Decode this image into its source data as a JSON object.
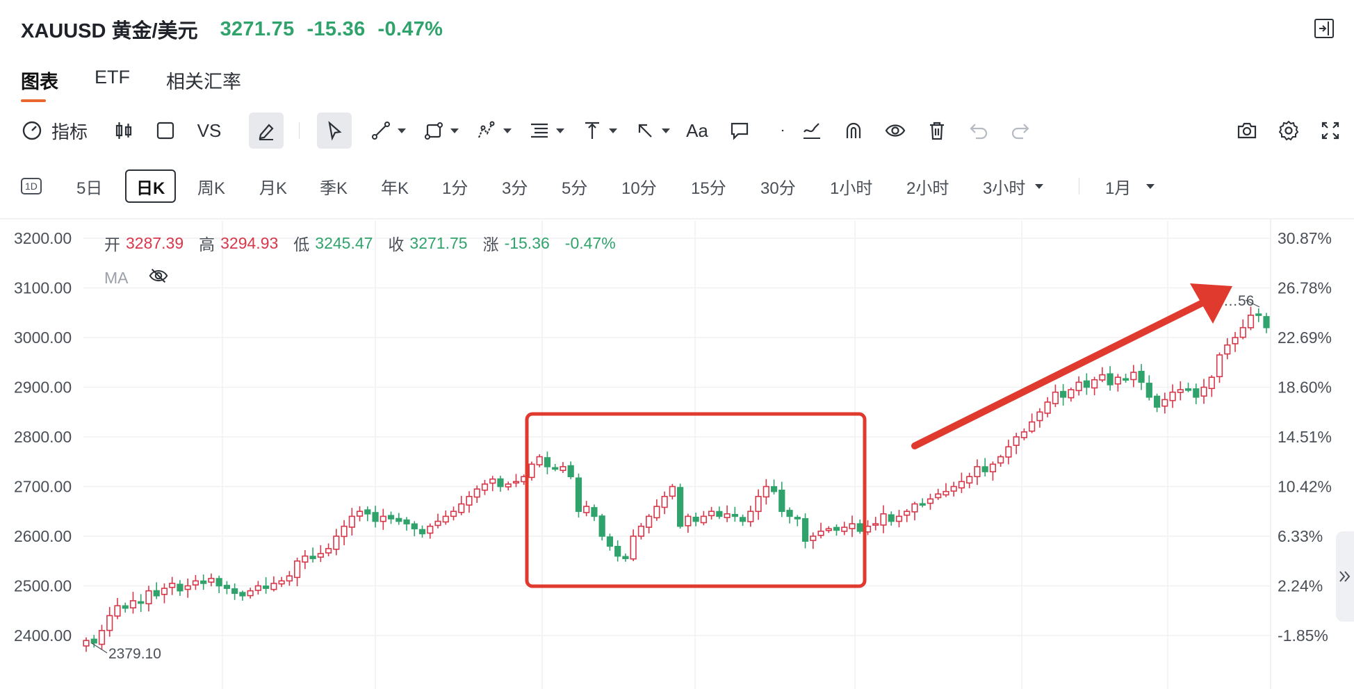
{
  "header": {
    "symbol": "XAUUSD 黄金/美元",
    "price": "3271.75",
    "change": "-15.36",
    "change_pct": "-0.47%",
    "price_color": "#2fa36b"
  },
  "tabs": [
    {
      "label": "图表",
      "active": true
    },
    {
      "label": "ETF",
      "active": false
    },
    {
      "label": "相关汇率",
      "active": false
    }
  ],
  "toolbar": {
    "indicators_label": "指标",
    "vs_label": "VS",
    "text_tool_label": "Aa",
    "icons": [
      "gauge-icon",
      "candlestick-icon",
      "square-icon",
      "pencil-icon",
      "cursor-icon",
      "line-icon",
      "shape-icon",
      "pattern-icon",
      "fib-icon",
      "measure-icon",
      "arrow-icon",
      "text-icon",
      "comment-icon",
      "dot-icon",
      "brush-icon",
      "magnet-icon",
      "eye-icon",
      "trash-icon",
      "undo-icon",
      "redo-icon",
      "camera-icon",
      "gear-icon",
      "fullscreen-icon"
    ]
  },
  "periods": {
    "badge": "1D",
    "items": [
      "5日",
      "日K",
      "周K",
      "月K",
      "季K",
      "年K",
      "1分",
      "3分",
      "5分",
      "10分",
      "15分",
      "30分",
      "1小时",
      "2小时",
      "3小时"
    ],
    "active": "日K",
    "range": "1月"
  },
  "ohlc": {
    "open_label": "开",
    "open": "3287.39",
    "high_label": "高",
    "high": "3294.93",
    "low_label": "低",
    "low": "3245.47",
    "close_label": "收",
    "close": "3271.75",
    "chg_label": "涨",
    "chg": "-15.36",
    "chg_pct": "-0.47%"
  },
  "ma_label": "MA",
  "chart_data": {
    "type": "candlestick",
    "y_left_ticks": [
      "3200.00",
      "3100.00",
      "3000.00",
      "2900.00",
      "2800.00",
      "2700.00",
      "2600.00",
      "2500.00",
      "2400.00"
    ],
    "y_right_ticks": [
      "30.87%",
      "26.78%",
      "22.69%",
      "18.60%",
      "14.51%",
      "10.42%",
      "6.33%",
      "2.24%",
      "-1.85%"
    ],
    "ylim": [
      2340,
      3260
    ],
    "min_label": "2379.10",
    "max_label": "…56",
    "up_color": "#d8374a",
    "down_color": "#2fa36b",
    "annotation_box_color": "#e03a2e",
    "closes": [
      2390,
      2385,
      2410,
      2440,
      2460,
      2455,
      2470,
      2465,
      2490,
      2480,
      2495,
      2505,
      2490,
      2500,
      2510,
      2505,
      2515,
      2500,
      2495,
      2485,
      2480,
      2490,
      2500,
      2495,
      2505,
      2510,
      2520,
      2550,
      2560,
      2555,
      2565,
      2575,
      2600,
      2620,
      2640,
      2650,
      2645,
      2630,
      2640,
      2635,
      2630,
      2625,
      2615,
      2605,
      2620,
      2630,
      2640,
      2650,
      2665,
      2680,
      2695,
      2705,
      2715,
      2700,
      2705,
      2710,
      2720,
      2745,
      2760,
      2740,
      2735,
      2740,
      2720,
      2650,
      2660,
      2640,
      2600,
      2580,
      2560,
      2555,
      2600,
      2620,
      2640,
      2660,
      2680,
      2700,
      2620,
      2640,
      2630,
      2640,
      2650,
      2640,
      2645,
      2640,
      2630,
      2650,
      2680,
      2700,
      2690,
      2650,
      2640,
      2635,
      2590,
      2600,
      2610,
      2615,
      2612,
      2618,
      2625,
      2610,
      2620,
      2625,
      2645,
      2630,
      2640,
      2650,
      2665,
      2665,
      2675,
      2685,
      2690,
      2700,
      2710,
      2720,
      2740,
      2730,
      2745,
      2760,
      2780,
      2800,
      2810,
      2830,
      2850,
      2870,
      2890,
      2880,
      2895,
      2910,
      2900,
      2915,
      2925,
      2905,
      2920,
      2915,
      2930,
      2910,
      2880,
      2860,
      2875,
      2890,
      2895,
      2895,
      2880,
      2900,
      2920,
      2965,
      2985,
      3000,
      3020,
      3045,
      3045,
      3020
    ]
  }
}
